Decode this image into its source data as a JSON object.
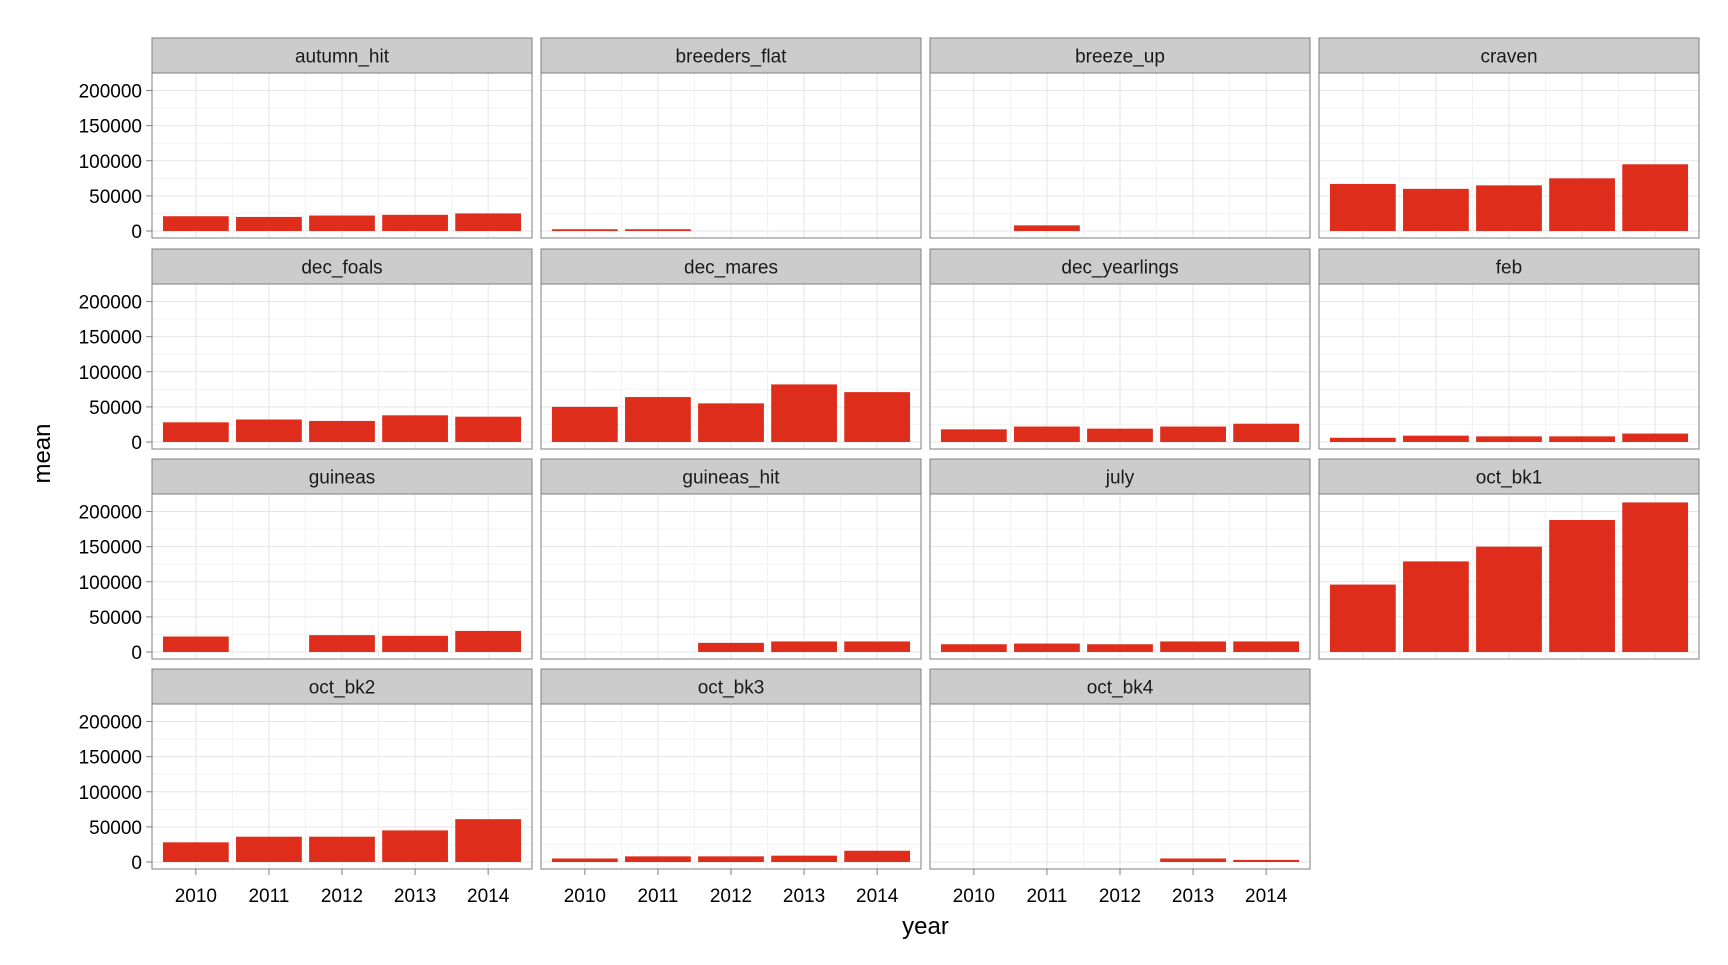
{
  "chart_data": {
    "type": "bar",
    "layout": "facet_wrap",
    "ncol": 4,
    "xlabel": "year",
    "ylabel": "mean",
    "ylim": [
      -10000,
      225000
    ],
    "yticks": [
      0,
      50000,
      100000,
      150000,
      200000
    ],
    "categories": [
      "2010",
      "2011",
      "2012",
      "2013",
      "2014"
    ],
    "bar_color": "#DE2D1A",
    "strip_color": "#CCCCCC",
    "grid": true,
    "panels": [
      {
        "name": "autumn_hit",
        "values": [
          21000,
          20000,
          22000,
          23000,
          25000
        ]
      },
      {
        "name": "breeders_flat",
        "values": [
          2500,
          2500,
          null,
          null,
          null
        ]
      },
      {
        "name": "breeze_up",
        "values": [
          null,
          8000,
          null,
          null,
          null
        ]
      },
      {
        "name": "craven",
        "values": [
          67000,
          60000,
          65000,
          75000,
          95000
        ]
      },
      {
        "name": "dec_foals",
        "values": [
          28000,
          32000,
          30000,
          38000,
          36000
        ]
      },
      {
        "name": "dec_mares",
        "values": [
          50000,
          64000,
          55000,
          82000,
          71000
        ]
      },
      {
        "name": "dec_yearlings",
        "values": [
          18000,
          22000,
          19000,
          22000,
          26000
        ]
      },
      {
        "name": "feb",
        "values": [
          6000,
          9000,
          8000,
          8000,
          12000
        ]
      },
      {
        "name": "guineas",
        "values": [
          22000,
          null,
          24000,
          23000,
          30000
        ]
      },
      {
        "name": "guineas_hit",
        "values": [
          null,
          null,
          13000,
          15000,
          15000
        ]
      },
      {
        "name": "july",
        "values": [
          11000,
          12000,
          11000,
          15000,
          15000
        ]
      },
      {
        "name": "oct_bk1",
        "values": [
          96000,
          129000,
          150000,
          188000,
          213000
        ]
      },
      {
        "name": "oct_bk2",
        "values": [
          28000,
          36000,
          36000,
          45000,
          61000
        ]
      },
      {
        "name": "oct_bk3",
        "values": [
          5000,
          8000,
          8000,
          9000,
          16000
        ]
      },
      {
        "name": "oct_bk4",
        "values": [
          null,
          null,
          null,
          5000,
          3000
        ]
      }
    ]
  }
}
